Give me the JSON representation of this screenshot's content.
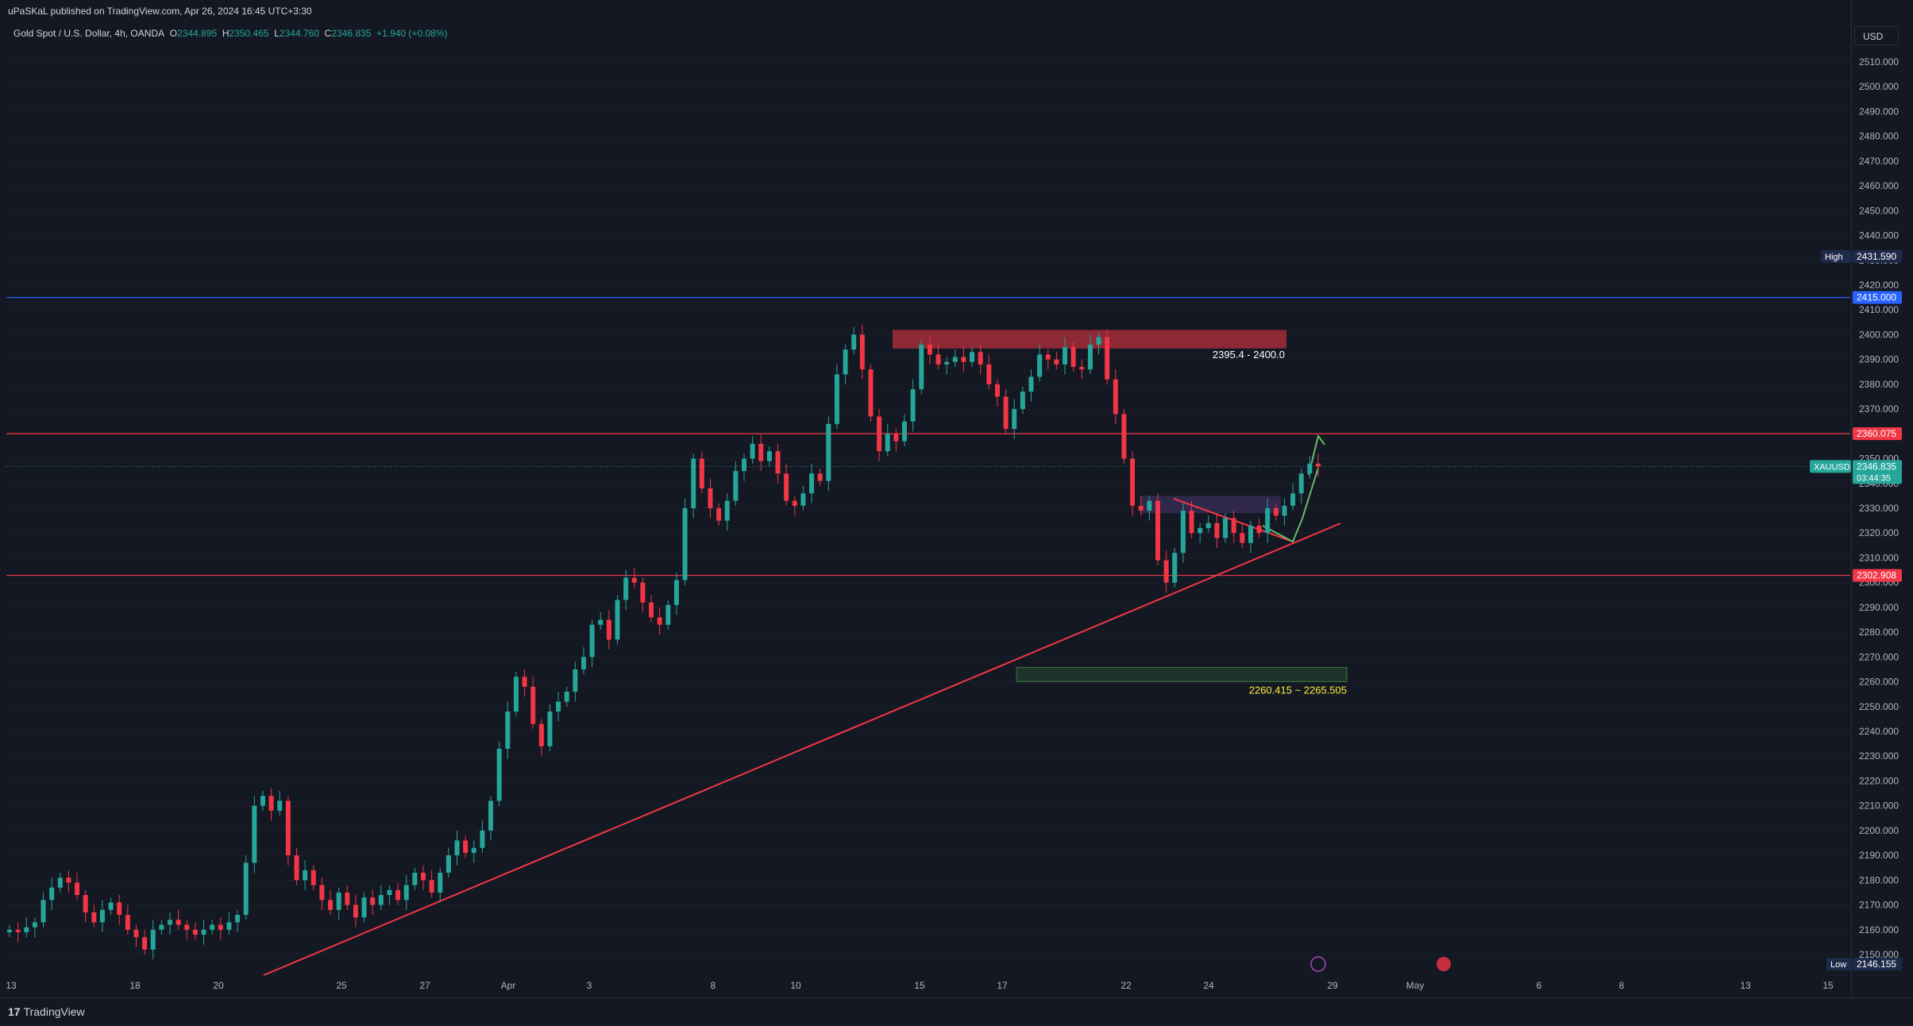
{
  "header": {
    "published": "uPaSKaL published on TradingView.com, Apr 26, 2024 16:45 UTC+3:30"
  },
  "legend": {
    "symbol": "Gold Spot / U.S. Dollar, 4h, OANDA",
    "o_label": "O",
    "o_value": "2344.895",
    "h_label": "H",
    "h_value": "2350.465",
    "l_label": "L",
    "l_value": "2344.760",
    "c_label": "C",
    "c_value": "2346.835",
    "change": "+1.940 (+0.08%)"
  },
  "currency_button": "USD",
  "footer": {
    "brand": "TradingView",
    "logo_icon": "tradingview-logo-icon"
  },
  "colors": {
    "up": "#26a69a",
    "down": "#f23645",
    "bg": "#141823",
    "grid": "#1b1f2a"
  },
  "chart_data": {
    "type": "candlestick",
    "symbol": "XAUUSD",
    "timeframe": "4h",
    "ylim": [
      2140,
      2520
    ],
    "y_ticks": [
      "2510.000",
      "2500.000",
      "2490.000",
      "2480.000",
      "2470.000",
      "2460.000",
      "2450.000",
      "2440.000",
      "2430.000",
      "2420.000",
      "2410.000",
      "2400.000",
      "2390.000",
      "2380.000",
      "2370.000",
      "2360.000",
      "2350.000",
      "2340.000",
      "2330.000",
      "2320.000",
      "2310.000",
      "2300.000",
      "2290.000",
      "2280.000",
      "2270.000",
      "2260.000",
      "2250.000",
      "2240.000",
      "2230.000",
      "2220.000",
      "2210.000",
      "2200.000",
      "2190.000",
      "2180.000",
      "2170.000",
      "2160.000",
      "2150.000"
    ],
    "x_ticks": [
      "13",
      "18",
      "20",
      "25",
      "27",
      "Apr",
      "3",
      "8",
      "10",
      "15",
      "17",
      "22",
      "24",
      "29",
      "May",
      "6",
      "8",
      "13",
      "15"
    ],
    "price_labels": [
      {
        "label": "High",
        "value": "2431.590",
        "kind": "high"
      },
      {
        "label": "",
        "value": "2415.000",
        "kind": "blue"
      },
      {
        "label": "",
        "value": "2360.075",
        "kind": "red"
      },
      {
        "label": "XAUUSD",
        "value": "2346.835",
        "sub": "03:44:35",
        "kind": "current"
      },
      {
        "label": "",
        "value": "2302.908",
        "kind": "red"
      },
      {
        "label": "Low",
        "value": "2146.155",
        "kind": "low"
      }
    ],
    "horizontal_lines": [
      {
        "price": 2415.0,
        "color": "#2962ff"
      },
      {
        "price": 2360.075,
        "color": "#f23645"
      },
      {
        "price": 2302.908,
        "color": "#f23645"
      }
    ],
    "zones": [
      {
        "label": "2395.4 - 2400.0",
        "from": 2395.4,
        "to": 2400.0,
        "color": "#f23645",
        "label_color": "#ffffff"
      },
      {
        "label": "2260.415 ~ 2265.505",
        "from": 2260.415,
        "to": 2265.505,
        "color": "#4caf50",
        "label_color": "#ffeb3b"
      }
    ],
    "closes": [
      2160,
      2159,
      2161,
      2163,
      2172,
      2177,
      2181,
      2179,
      2174,
      2167,
      2163,
      2168,
      2171,
      2166,
      2160,
      2157,
      2152,
      2160,
      2162,
      2164,
      2162,
      2160,
      2158,
      2160,
      2162,
      2160,
      2163,
      2166,
      2187,
      2210,
      2214,
      2208,
      2212,
      2190,
      2180,
      2184,
      2178,
      2172,
      2168,
      2175,
      2170,
      2165,
      2173,
      2170,
      2174,
      2176,
      2172,
      2178,
      2183,
      2180,
      2175,
      2183,
      2190,
      2196,
      2191,
      2193,
      2200,
      2212,
      2233,
      2248,
      2262,
      2258,
      2243,
      2234,
      2248,
      2252,
      2256,
      2265,
      2270,
      2283,
      2285,
      2277,
      2293,
      2302,
      2300,
      2292,
      2286,
      2283,
      2291,
      2301,
      2330,
      2350,
      2338,
      2330,
      2325,
      2333,
      2345,
      2350,
      2356,
      2349,
      2353,
      2344,
      2333,
      2331,
      2336,
      2344,
      2341,
      2364,
      2384,
      2394,
      2400,
      2386,
      2367,
      2353,
      2360,
      2357,
      2365,
      2378,
      2396,
      2392,
      2388,
      2389,
      2391,
      2389,
      2393,
      2388,
      2380,
      2375,
      2362,
      2370,
      2377,
      2383,
      2392,
      2390,
      2388,
      2395,
      2387,
      2386,
      2396,
      2399,
      2382,
      2368,
      2350,
      2331,
      2329,
      2333,
      2309,
      2300,
      2312,
      2329,
      2320,
      2322,
      2324,
      2318,
      2326,
      2320,
      2316,
      2323,
      2320,
      2330,
      2327,
      2331,
      2336,
      2344,
      2348,
      2346.835
    ]
  }
}
